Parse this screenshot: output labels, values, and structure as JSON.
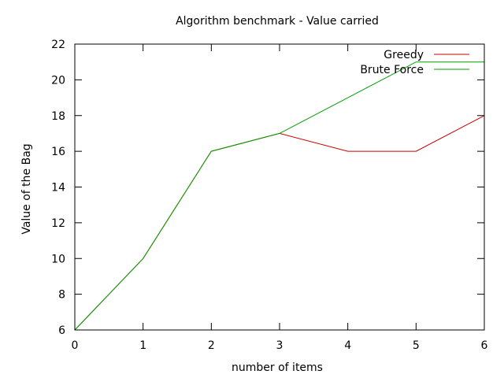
{
  "chart_data": {
    "type": "line",
    "title": "Algorithm benchmark - Value carried",
    "xlabel": "number of items",
    "ylabel": "Value of the Bag",
    "xlim": [
      0,
      6
    ],
    "ylim": [
      6,
      22
    ],
    "x_ticks": [
      0,
      1,
      2,
      3,
      4,
      5,
      6
    ],
    "y_ticks": [
      6,
      8,
      10,
      12,
      14,
      16,
      18,
      20,
      22
    ],
    "x": [
      0,
      1,
      2,
      3,
      4,
      5,
      6
    ],
    "grid": false,
    "legend_position": "top-right",
    "series": [
      {
        "name": "Greedy",
        "color": "#cc0000",
        "values": [
          6,
          10,
          16,
          17,
          16,
          16,
          18
        ]
      },
      {
        "name": "Brute Force",
        "color": "#00a000",
        "values": [
          6,
          10,
          16,
          17,
          19,
          21,
          21
        ]
      }
    ]
  }
}
